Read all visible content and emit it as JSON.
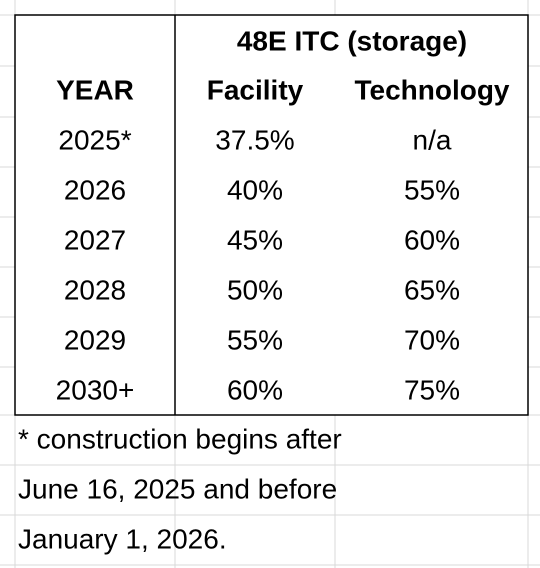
{
  "table": {
    "group_header": "48E ITC (storage)",
    "columns": [
      "YEAR",
      "Facility",
      "Technology"
    ],
    "rows": [
      [
        "2025*",
        "37.5%",
        "n/a"
      ],
      [
        "2026",
        "40%",
        "55%"
      ],
      [
        "2027",
        "45%",
        "60%"
      ],
      [
        "2028",
        "50%",
        "65%"
      ],
      [
        "2029",
        "55%",
        "70%"
      ],
      [
        "2030+",
        "60%",
        "75%"
      ]
    ]
  },
  "footnote": [
    "* construction begins after",
    "June 16, 2025 and before",
    "January 1, 2026."
  ]
}
